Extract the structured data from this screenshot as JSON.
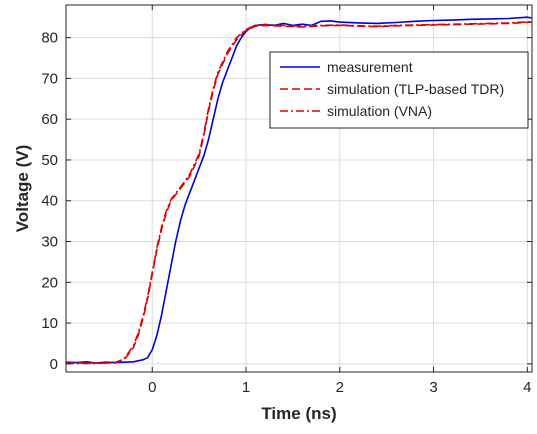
{
  "chart_data": {
    "type": "line",
    "xlabel": "Time (ns)",
    "ylabel": "Voltage (V)",
    "xlim": [
      -0.92,
      4.05
    ],
    "ylim": [
      -2,
      88
    ],
    "x_ticks": [
      0,
      1,
      2,
      3,
      4
    ],
    "y_ticks": [
      0,
      10,
      20,
      30,
      40,
      50,
      60,
      70,
      80
    ],
    "grid": true,
    "legend_position": "top-right",
    "series": [
      {
        "name": "measurement",
        "color": "#0000dd",
        "dash": "solid",
        "points": [
          [
            -0.92,
            0.4
          ],
          [
            -0.8,
            0.3
          ],
          [
            -0.7,
            0.5
          ],
          [
            -0.6,
            0.2
          ],
          [
            -0.5,
            0.4
          ],
          [
            -0.4,
            0.3
          ],
          [
            -0.3,
            0.4
          ],
          [
            -0.2,
            0.5
          ],
          [
            -0.1,
            1.0
          ],
          [
            -0.05,
            1.5
          ],
          [
            0.0,
            3.5
          ],
          [
            0.05,
            7
          ],
          [
            0.1,
            12
          ],
          [
            0.15,
            18
          ],
          [
            0.2,
            24
          ],
          [
            0.25,
            30
          ],
          [
            0.3,
            35
          ],
          [
            0.35,
            39
          ],
          [
            0.4,
            42
          ],
          [
            0.45,
            45
          ],
          [
            0.5,
            48
          ],
          [
            0.55,
            51
          ],
          [
            0.6,
            55
          ],
          [
            0.65,
            60
          ],
          [
            0.7,
            65
          ],
          [
            0.75,
            69
          ],
          [
            0.8,
            72
          ],
          [
            0.85,
            75
          ],
          [
            0.9,
            78
          ],
          [
            0.95,
            80
          ],
          [
            1.0,
            81.5
          ],
          [
            1.05,
            82.5
          ],
          [
            1.1,
            83
          ],
          [
            1.2,
            83.2
          ],
          [
            1.3,
            83
          ],
          [
            1.4,
            83.5
          ],
          [
            1.5,
            83
          ],
          [
            1.6,
            83.3
          ],
          [
            1.7,
            83
          ],
          [
            1.8,
            84
          ],
          [
            1.9,
            84.1
          ],
          [
            2.0,
            83.8
          ],
          [
            2.2,
            83.6
          ],
          [
            2.4,
            83.5
          ],
          [
            2.6,
            83.7
          ],
          [
            2.8,
            84
          ],
          [
            3.0,
            84.2
          ],
          [
            3.2,
            84.3
          ],
          [
            3.4,
            84.5
          ],
          [
            3.6,
            84.6
          ],
          [
            3.8,
            84.7
          ],
          [
            4.0,
            85
          ],
          [
            4.05,
            84.8
          ]
        ]
      },
      {
        "name": "simulation (TLP-based TDR)",
        "color": "#dd0000",
        "dash": "dashed",
        "points": [
          [
            -0.92,
            0.2
          ],
          [
            -0.6,
            0.2
          ],
          [
            -0.4,
            0.2
          ],
          [
            -0.3,
            1
          ],
          [
            -0.2,
            4
          ],
          [
            -0.15,
            7
          ],
          [
            -0.1,
            11
          ],
          [
            -0.05,
            16
          ],
          [
            0.0,
            22
          ],
          [
            0.05,
            28
          ],
          [
            0.1,
            33
          ],
          [
            0.15,
            37
          ],
          [
            0.2,
            40
          ],
          [
            0.3,
            43
          ],
          [
            0.4,
            46
          ],
          [
            0.5,
            51
          ],
          [
            0.55,
            56
          ],
          [
            0.6,
            62
          ],
          [
            0.65,
            67
          ],
          [
            0.7,
            71
          ],
          [
            0.8,
            76
          ],
          [
            0.9,
            79.5
          ],
          [
            1.0,
            81.8
          ],
          [
            1.1,
            82.8
          ],
          [
            1.2,
            83
          ],
          [
            1.4,
            82.8
          ],
          [
            1.6,
            82.6
          ],
          [
            1.8,
            82.9
          ],
          [
            2.0,
            83
          ],
          [
            2.2,
            82.8
          ],
          [
            2.4,
            82.7
          ],
          [
            2.6,
            82.9
          ],
          [
            2.8,
            83
          ],
          [
            3.0,
            83.1
          ],
          [
            3.2,
            83.2
          ],
          [
            3.4,
            83.3
          ],
          [
            3.6,
            83.4
          ],
          [
            3.8,
            83.5
          ],
          [
            4.05,
            83.8
          ]
        ]
      },
      {
        "name": "simulation (VNA)",
        "color": "#dd0000",
        "dash": "dashdot",
        "points": [
          [
            -0.92,
            0.1
          ],
          [
            -0.6,
            0.1
          ],
          [
            -0.4,
            0.3
          ],
          [
            -0.3,
            1.2
          ],
          [
            -0.2,
            4.5
          ],
          [
            -0.15,
            7.5
          ],
          [
            -0.1,
            11.5
          ],
          [
            -0.05,
            16.5
          ],
          [
            0.0,
            22.5
          ],
          [
            0.05,
            28.5
          ],
          [
            0.1,
            33.5
          ],
          [
            0.15,
            37.5
          ],
          [
            0.2,
            40.3
          ],
          [
            0.3,
            43.3
          ],
          [
            0.4,
            46.5
          ],
          [
            0.5,
            51.5
          ],
          [
            0.55,
            56.5
          ],
          [
            0.6,
            62.5
          ],
          [
            0.65,
            67.5
          ],
          [
            0.7,
            71.5
          ],
          [
            0.8,
            76.5
          ],
          [
            0.9,
            80
          ],
          [
            1.0,
            82
          ],
          [
            1.1,
            83
          ],
          [
            1.2,
            83.2
          ],
          [
            1.4,
            83
          ],
          [
            1.6,
            82.8
          ],
          [
            1.8,
            83
          ],
          [
            2.0,
            83.1
          ],
          [
            2.2,
            82.9
          ],
          [
            2.4,
            82.8
          ],
          [
            2.6,
            83
          ],
          [
            2.8,
            83.1
          ],
          [
            3.0,
            83.2
          ],
          [
            3.2,
            83.3
          ],
          [
            3.4,
            83.4
          ],
          [
            3.6,
            83.5
          ],
          [
            3.8,
            83.6
          ],
          [
            4.05,
            83.9
          ]
        ]
      }
    ]
  }
}
